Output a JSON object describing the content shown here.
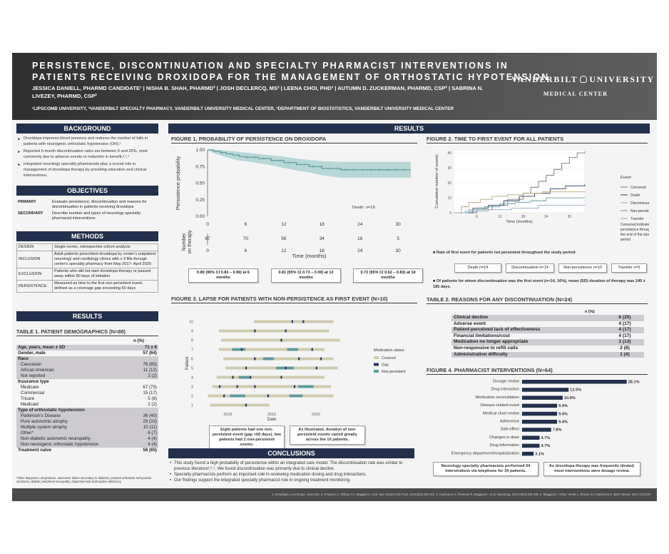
{
  "title": {
    "line1": "PERSISTENCE, DISCONTINUATION AND SPECIALTY PHARMACIST INTERVENTIONS IN",
    "line2": "PATIENTS RECEIVING DROXIDOPA FOR THE MANAGEMENT OF ORTHOSTATIC HYPOTENSION"
  },
  "authors": "JESSICA DANIELL, PHARMD CANDIDATE¹ | NISHA B. SHAH, PHARMD² | JOSH DECLERCQ, MS³ | LEENA CHOI, PHD³ | AUTUMN D. ZUCKERMAN, PHARMD, CSP² | SABRINA N. LIVEZEY, PHARMD, CSP²",
  "affiliations": "¹LIPSCOMB UNIVERSITY, ²VANDERBILT SPECIALTY PHARMACY, VANDERBILT UNIVERSITY MEDICAL CENTER, ³DEPARTMENT OF BIOSTATISTICS, VANDERBILT UNIVERSITY MEDICAL CENTER",
  "logo": {
    "left": "VANDERBILT",
    "right": "UNIVERSITY",
    "bottom": "MEDICAL CENTER"
  },
  "headers": {
    "background": "BACKGROUND",
    "objectives": "OBJECTIVES",
    "methods": "METHODS",
    "results_left": "RESULTS",
    "results_main": "RESULTS",
    "conclusions": "CONCLUSIONS"
  },
  "background_bullets": [
    "Droxidopa improves blood pressure and reduces the number of falls in patients with neurogenic orthostatic hypotension (OH).¹",
    "Reported 6-month discontinuation rates are between 6 and 25%, most commonly due to adverse events or reduction in benefit.²,³,⁴",
    "Integrated neurology specialty pharmacists play a crucial role in management of droxidopa therapy by providing education and clinical interventions."
  ],
  "objectives": [
    {
      "label": "PRIMARY",
      "text": "Evaluate persistence, discontinuation and reasons for discontinuation in patients receiving droxidopa"
    },
    {
      "label": "SECONDARY",
      "text": "Describe number and types of neurology specialty pharmacist interventions"
    }
  ],
  "methods": [
    {
      "label": "DESIGN",
      "text": "Single-center, retrospective cohort analysis"
    },
    {
      "label": "INCLUSION",
      "text": "Adult patients prescribed droxidopa by center's outpatient neurology and cardiology clinics with ≥ 3 fills through center's specialty pharmacy from May 2017- April 2020"
    },
    {
      "label": "EXCLUSION",
      "text": "Patients who did not start droxidopa therapy or passed away within 90 days of initiation"
    },
    {
      "label": "PERSISTENCE",
      "text": "Measured as time to the first non-persistent event, defined as a coverage gap exceeding 60 days"
    }
  ],
  "table1": {
    "title": "TABLE 1. PATIENT DEMOGRAPHICS (N=89)",
    "col": "n (%)",
    "rows": [
      {
        "label": "Age, years, mean ± SD",
        "value": "71 ± 8",
        "style": "sh"
      },
      {
        "label": "Gender, male",
        "value": "57 (64)",
        "style": ""
      },
      {
        "label": "Race",
        "value": "",
        "style": "sh"
      },
      {
        "label": "Caucasian",
        "value": "76 (85)",
        "style": "sh ind"
      },
      {
        "label": "African American",
        "value": "11 (12)",
        "style": "sh ind"
      },
      {
        "label": "Not reported",
        "value": "2 (2)",
        "style": "sh ind"
      },
      {
        "label": "Insurance type",
        "value": "",
        "style": ""
      },
      {
        "label": "Medicare",
        "value": "67 (75)",
        "style": "ind"
      },
      {
        "label": "Commercial",
        "value": "15 (17)",
        "style": "ind"
      },
      {
        "label": "Tricare",
        "value": "5 (6)",
        "style": "ind"
      },
      {
        "label": "Medicaid",
        "value": "2 (2)",
        "style": "ind"
      },
      {
        "label": "Type of orthostatic hypotension",
        "value": "",
        "style": "sh"
      },
      {
        "label": "Parkinson's Disease",
        "value": "36 (40)",
        "style": "sh ind"
      },
      {
        "label": "Pure autonomic atrophy",
        "value": "29 (33)",
        "style": "sh ind"
      },
      {
        "label": "Multiple system atrophy",
        "value": "10 (11)",
        "style": "sh ind"
      },
      {
        "label": "Other*",
        "value": "6 (7)",
        "style": "sh ind"
      },
      {
        "label": "Non-diabetic autonomic neuropathy",
        "value": "4 (4)",
        "style": "sh ind"
      },
      {
        "label": "Non-neurogenic orthostatic hypotension",
        "value": "4 (4)",
        "style": "sh ind"
      },
      {
        "label": "Treatment naïve",
        "value": "58 (65)",
        "style": ""
      }
    ],
    "footnote": "*Other diagnoses: amyloidosis, autonomic failure secondary to diabetes, postural orthostatic tachycardia syndrome, diabetic peripheral neuropathy, dopamine beta-hydroxylase deficiency"
  },
  "fig1": {
    "title": "FIGURE 1. PROBABILITY OF PERSISTENCE ON DROXIDOPA",
    "ylabel": "Persistence probability",
    "xlabel": "Time (months)",
    "risk_label": "Number on therapy",
    "annotation": "Death: n=19",
    "boxes": [
      "0.89 (95% CI 0.83 – 0.96) at 6 months",
      "0.81 (95% CI 0.73 – 0.90) at 12 months",
      "0.72 (95% CI 0.62 – 0.83) at 18 months"
    ]
  },
  "fig2": {
    "title": "FIGURE 2. TIME TO FIRST EVENT FOR ALL PATIENTS",
    "ylabel": "Cumulative number of events",
    "xlabel": "Time (months)",
    "legend_title": "Event",
    "note": "Censored indicates persistence through the end of the study period",
    "rate_title": "Rate of first event for patients not persistent throughout the study period:",
    "pills": [
      "Death n=19",
      "Discontinuation n=14",
      "Non-persistence n=10",
      "Transfer n=5"
    ],
    "summary": "Of patients for whom discontinuation was the first event (n=14, 16%), mean (SD) duration of therapy was 245 ± 185 days."
  },
  "fig3": {
    "title": "FIGURE 3. LAPSE FOR PATIENTS WITH NON-PERSISTENCE AS FIRST EVENT (N=10)",
    "ylabel": "Patient",
    "xlabel": "Date",
    "legend_title": "Medication status",
    "note1": "Eight patients had one non-persistent event (gap >60 days), two patients had 2 non-persistent events.",
    "note2": "As illustrated, duration of non-persistent events varied greatly across the 10 patients."
  },
  "table2": {
    "title": "TABLE 2. REASONS FOR ANY DISCONTINUATION (N=24)",
    "col": "n (%)",
    "rows": [
      {
        "label": "Clinical decline",
        "value": "6 (25)"
      },
      {
        "label": "Adverse event",
        "value": "4 (17)"
      },
      {
        "label": "Patient-perceived lack of effectiveness",
        "value": "4 (17)"
      },
      {
        "label": "Financial limitations/cost",
        "value": "4 (17)"
      },
      {
        "label": "Medication no longer appropriate",
        "value": "3 (13)"
      },
      {
        "label": "Non-responsive to refill calls",
        "value": "2 (8)"
      },
      {
        "label": "Administration difficulty",
        "value": "1 (4)"
      }
    ]
  },
  "fig4": {
    "title": "FIGURE 4. PHARMACIST INTERVENTIONS (N=64)",
    "note1": "Neurology specialty pharmacists performed 64 interventions via telephone for 34 patients.",
    "note2": "As droxidopa therapy was frequently titrated, most interventions were dosage review."
  },
  "conclusions": [
    "This study found a high probability of persistence within an integrated care model. The discontinuation rate was similar to previous literature²,³,⁴. We found discontinuation was primarily due to clinical decline.",
    "Specialty pharmacists perform an important role in reviewing medication dosing and drug interactions.",
    "Our findings support the integrated specialty pharmacist role in ongoing treatment monitoring."
  ],
  "footer": "1. Droxidopa. Lexi-Drugs. Lexicomp. 2. François C, Shibao CA, Biaggioni I, et al. Mov Disord Clin Pract. 2019;6(3):235-242. 3. Kaufmann H, Freeman R, Biaggioni I, et al. Neurology. 2014;83(4):328-335. 4. Biaggioni I, Arthur Hewitt L, Rowse GJ, Kaufmann H. BMC Neurol. 2017;17(1):90.",
  "chart_data": [
    {
      "type": "line",
      "title": "FIGURE 1. PROBABILITY OF PERSISTENCE ON DROXIDOPA",
      "xlabel": "Time (months)",
      "ylabel": "Persistence probability",
      "x_ticks": [
        0,
        6,
        12,
        18,
        24,
        30
      ],
      "y_ticks": [
        "0.00",
        "0.25",
        "0.50",
        "0.75",
        "1.00"
      ],
      "xlim": [
        0,
        32
      ],
      "ylim": [
        0,
        1
      ],
      "x": [
        0,
        1,
        2,
        3,
        4,
        5,
        6,
        8,
        10,
        12,
        14,
        16,
        18,
        21,
        24,
        27,
        30,
        32
      ],
      "y": [
        1.0,
        0.98,
        0.96,
        0.94,
        0.92,
        0.9,
        0.89,
        0.87,
        0.84,
        0.81,
        0.78,
        0.75,
        0.72,
        0.7,
        0.7,
        0.7,
        0.7,
        0.7
      ],
      "ci_low": [
        1.0,
        0.95,
        0.92,
        0.89,
        0.86,
        0.84,
        0.83,
        0.8,
        0.77,
        0.73,
        0.69,
        0.66,
        0.62,
        0.58,
        0.58,
        0.58,
        0.58,
        0.58
      ],
      "ci_high": [
        1.0,
        1.0,
        1.0,
        0.99,
        0.98,
        0.97,
        0.96,
        0.94,
        0.92,
        0.9,
        0.87,
        0.85,
        0.83,
        0.82,
        0.82,
        0.82,
        0.82,
        0.82
      ],
      "number_at_risk": {
        "x": [
          0,
          6,
          12,
          18,
          24,
          30
        ],
        "values": [
          87,
          70,
          56,
          34,
          18,
          5
        ]
      },
      "colors": {
        "line": "#5f9b9b",
        "band": "#a9d0d0"
      }
    },
    {
      "type": "line",
      "title": "FIGURE 2. TIME TO FIRST EVENT FOR ALL PATIENTS",
      "xlabel": "Time (months)",
      "ylabel": "Cumulative number of events",
      "x_ticks": [
        6,
        12,
        18,
        24,
        30
      ],
      "y_ticks": [
        0,
        10,
        20,
        30,
        40
      ],
      "xlim": [
        0,
        34
      ],
      "ylim": [
        0,
        42
      ],
      "legend_title": "Event",
      "series": [
        {
          "name": "Censored",
          "color": "#777777",
          "x": [
            0,
            6,
            10,
            14,
            18,
            20,
            22,
            24,
            26,
            28,
            30,
            32,
            34
          ],
          "y": [
            0,
            2,
            5,
            9,
            13,
            17,
            21,
            25,
            29,
            33,
            37,
            40,
            41
          ]
        },
        {
          "name": "Death",
          "color": "#2f3a63",
          "x": [
            0,
            5,
            9,
            13,
            17,
            21,
            25,
            29,
            34
          ],
          "y": [
            0,
            3,
            5,
            8,
            11,
            13,
            16,
            18,
            19
          ]
        },
        {
          "name": "Discontinuation",
          "color": "#b5a878",
          "x": [
            0,
            2,
            4,
            7,
            10,
            14,
            18,
            23,
            34
          ],
          "y": [
            0,
            4,
            7,
            9,
            11,
            12,
            13,
            14,
            14
          ]
        },
        {
          "name": "Non-persistent",
          "color": "#5f9b9b",
          "x": [
            0,
            4,
            8,
            12,
            16,
            20,
            24,
            34
          ],
          "y": [
            0,
            2,
            4,
            6,
            7,
            8,
            10,
            10
          ]
        },
        {
          "name": "Transfer",
          "color": "#8fa3c4",
          "x": [
            0,
            3,
            9,
            15,
            22,
            34
          ],
          "y": [
            0,
            1,
            2,
            3,
            5,
            5
          ]
        }
      ]
    },
    {
      "type": "bar",
      "title": "FIGURE 3. LAPSE FOR PATIENTS WITH NON-PERSISTENCE AS FIRST EVENT (N=10)",
      "xlabel": "Date",
      "ylabel": "Patient",
      "x_ticks": [
        "2018",
        "2019",
        "2020"
      ],
      "y_ticks": [
        1,
        2,
        3,
        4,
        5,
        6,
        7,
        8,
        9,
        10
      ],
      "legend_title": "Medication status",
      "legend": [
        {
          "name": "Covered",
          "color": "#cfcbb0"
        },
        {
          "name": "Gap",
          "color": "#2f3a63"
        },
        {
          "name": "Non-persistent",
          "color": "#5f9b9b"
        }
      ],
      "patients": [
        {
          "patient": 1,
          "start": 2017.6,
          "end": 2018.95,
          "gaps": [
            2018.4
          ],
          "np": []
        },
        {
          "patient": 2,
          "start": 2017.55,
          "end": 2020.4,
          "gaps": [
            2017.9,
            2018.9
          ],
          "np": [
            [
              2018.05,
              2018.4
            ],
            [
              2019.4,
              2019.7
            ]
          ]
        },
        {
          "patient": 3,
          "start": 2017.65,
          "end": 2020.35,
          "gaps": [
            2017.8,
            2018.2,
            2018.6,
            2019.5
          ],
          "np": [
            [
              2019.6,
              2019.95
            ]
          ]
        },
        {
          "patient": 4,
          "start": 2017.75,
          "end": 2020.2,
          "gaps": [
            2018.1,
            2018.5,
            2019.2
          ],
          "np": [
            [
              2018.25,
              2018.5
            ]
          ]
        },
        {
          "patient": 5,
          "start": 2017.95,
          "end": 2020.5,
          "gaps": [
            2018.4,
            2019.3,
            2020.0
          ],
          "np": [
            [
              2019.1,
              2019.5
            ]
          ]
        },
        {
          "patient": 6,
          "start": 2017.9,
          "end": 2020.4,
          "gaps": [
            2018.6,
            2019.6,
            2020.1
          ],
          "np": [
            [
              2018.8,
              2019.05
            ]
          ]
        },
        {
          "patient": 7,
          "start": 2017.8,
          "end": 2020.2,
          "gaps": [
            2018.3,
            2019.9
          ],
          "np": [
            [
              2018.1,
              2018.4
            ],
            [
              2019.35,
              2019.6
            ]
          ]
        },
        {
          "patient": 8,
          "start": 2017.85,
          "end": 2020.55,
          "gaps": [
            2019.2
          ],
          "np": []
        },
        {
          "patient": 9,
          "start": 2017.8,
          "end": 2020.3,
          "gaps": [
            2018.6,
            2019.3
          ],
          "np": []
        },
        {
          "patient": 10,
          "start": 2018.6,
          "end": 2020.4,
          "gaps": [
            2019.45,
            2019.7
          ],
          "np": []
        }
      ]
    },
    {
      "type": "bar",
      "title": "FIGURE 4. PHARMACIST INTERVENTIONS (N=64)",
      "orientation": "horizontal",
      "categories": [
        "Dosage review",
        "Drug interaction",
        "Medication reconciliation",
        "Disease-related event",
        "Medical chart review",
        "Adherence",
        "Side effect",
        "Changes in dose",
        "Drug information",
        "Emergency department/hospitalization"
      ],
      "values": [
        28.1,
        12.5,
        10.9,
        9.4,
        9.4,
        9.4,
        7.8,
        4.7,
        4.7,
        3.1
      ],
      "labels": [
        "28.1%",
        "12.5%",
        "10.9%",
        "9.4%",
        "9.4%",
        "9.4%",
        "7.8%",
        "4.7%",
        "4.7%",
        "3.1%"
      ],
      "color": "#23304d"
    }
  ]
}
